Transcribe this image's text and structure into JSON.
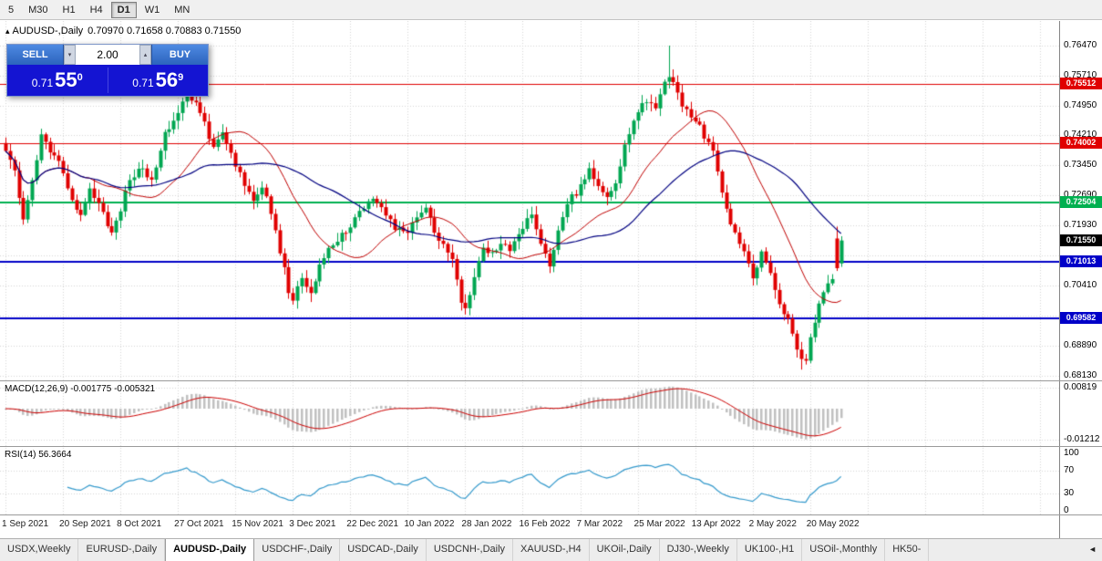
{
  "toolbar": {
    "timeframes": [
      {
        "label": "5",
        "active": false
      },
      {
        "label": "M30",
        "active": false
      },
      {
        "label": "H1",
        "active": false
      },
      {
        "label": "H4",
        "active": false
      },
      {
        "label": "D1",
        "active": true
      },
      {
        "label": "W1",
        "active": false
      },
      {
        "label": "MN",
        "active": false
      }
    ]
  },
  "chart_header": {
    "collapse_icon": "▴",
    "symbol_period": "AUDUSD-,Daily",
    "ohlc": "0.70970 0.71658 0.70883 0.71550"
  },
  "trade_panel": {
    "sell_label": "SELL",
    "buy_label": "BUY",
    "volume": "2.00",
    "spin_down_icon": "▾",
    "spin_up_icon": "▴",
    "sell_price": {
      "prefix": "0.71",
      "big": "55",
      "sup": "0"
    },
    "buy_price": {
      "prefix": "0.71",
      "big": "56",
      "sup": "9"
    }
  },
  "macd": {
    "label": "MACD(12,26,9) -0.001775 -0.005321",
    "fast": 12,
    "slow": 26,
    "signal": 9,
    "value": -0.001775,
    "signal_value": -0.005321,
    "axis_labels": [
      "0.00819",
      "-0.01212"
    ]
  },
  "rsi": {
    "label": "RSI(14) 56.3664",
    "period": 14,
    "value": 56.3664,
    "axis_levels": [
      100,
      70,
      30,
      0
    ],
    "grid_levels": [
      70,
      30
    ]
  },
  "price_axis": {
    "ticks": [
      "0.76470",
      "0.75710",
      "0.74950",
      "0.74210",
      "0.73450",
      "0.72690",
      "0.71930",
      "0.71170",
      "0.70410",
      "0.69650",
      "0.68890",
      "0.68130"
    ],
    "current_price": {
      "label": "0.71550",
      "value": 0.7155,
      "color": "#000000"
    }
  },
  "date_axis": {
    "labels": [
      "1 Sep 2021",
      "20 Sep 2021",
      "8 Oct 2021",
      "27 Oct 2021",
      "15 Nov 2021",
      "3 Dec 2021",
      "22 Dec 2021",
      "10 Jan 2022",
      "28 Jan 2022",
      "16 Feb 2022",
      "7 Mar 2022",
      "25 Mar 2022",
      "13 Apr 2022",
      "2 May 2022",
      "20 May 2022"
    ],
    "candles_per_label": 13
  },
  "levels": [
    {
      "value": 0.75512,
      "label": "0.75512",
      "color": "#e00000",
      "width": 1
    },
    {
      "value": 0.74002,
      "label": "0.74002",
      "color": "#e00000",
      "width": 1
    },
    {
      "value": 0.72504,
      "label": "0.72504",
      "color": "#00b050",
      "width": 2
    },
    {
      "value": 0.71013,
      "label": "0.71013",
      "color": "#0000c8",
      "width": 2
    },
    {
      "value": 0.69582,
      "label": "0.69582",
      "color": "#0000c8",
      "width": 2
    }
  ],
  "chart_data": {
    "type": "candlestick",
    "symbol": "AUDUSD-",
    "period": "Daily",
    "total_candles": 190,
    "ylim": [
      0.679,
      0.7709
    ],
    "close_anchors": [
      [
        0,
        0.739
      ],
      [
        2,
        0.733
      ],
      [
        4,
        0.721
      ],
      [
        6,
        0.731
      ],
      [
        8,
        0.742
      ],
      [
        10,
        0.7385
      ],
      [
        13,
        0.733
      ],
      [
        15,
        0.725
      ],
      [
        17,
        0.7225
      ],
      [
        19,
        0.729
      ],
      [
        21,
        0.725
      ],
      [
        24,
        0.7175
      ],
      [
        26,
        0.7235
      ],
      [
        28,
        0.731
      ],
      [
        31,
        0.734
      ],
      [
        33,
        0.7305
      ],
      [
        36,
        0.743
      ],
      [
        39,
        0.747
      ],
      [
        41,
        0.7535
      ],
      [
        43,
        0.7495
      ],
      [
        45,
        0.745
      ],
      [
        47,
        0.739
      ],
      [
        49,
        0.743
      ],
      [
        52,
        0.734
      ],
      [
        54,
        0.73
      ],
      [
        56,
        0.7255
      ],
      [
        58,
        0.729
      ],
      [
        60,
        0.723
      ],
      [
        62,
        0.713
      ],
      [
        64,
        0.703
      ],
      [
        65,
        0.7005
      ],
      [
        67,
        0.706
      ],
      [
        69,
        0.7015
      ],
      [
        71,
        0.709
      ],
      [
        73,
        0.713
      ],
      [
        75,
        0.716
      ],
      [
        78,
        0.719
      ],
      [
        80,
        0.723
      ],
      [
        83,
        0.7265
      ],
      [
        85,
        0.724
      ],
      [
        88,
        0.719
      ],
      [
        91,
        0.717
      ],
      [
        93,
        0.7215
      ],
      [
        95,
        0.723
      ],
      [
        97,
        0.718
      ],
      [
        99,
        0.714
      ],
      [
        101,
        0.71
      ],
      [
        103,
        0.7005
      ],
      [
        104,
        0.699
      ],
      [
        106,
        0.706
      ],
      [
        108,
        0.714
      ],
      [
        110,
        0.712
      ],
      [
        112,
        0.715
      ],
      [
        114,
        0.7135
      ],
      [
        117,
        0.719
      ],
      [
        119,
        0.722
      ],
      [
        121,
        0.715
      ],
      [
        123,
        0.7095
      ],
      [
        125,
        0.718
      ],
      [
        127,
        0.725
      ],
      [
        130,
        0.729
      ],
      [
        132,
        0.734
      ],
      [
        134,
        0.729
      ],
      [
        136,
        0.7265
      ],
      [
        138,
        0.73
      ],
      [
        140,
        0.739
      ],
      [
        143,
        0.748
      ],
      [
        145,
        0.751
      ],
      [
        147,
        0.749
      ],
      [
        149,
        0.7555
      ],
      [
        150,
        0.7575
      ],
      [
        151,
        0.7555
      ],
      [
        153,
        0.75
      ],
      [
        156,
        0.746
      ],
      [
        158,
        0.742
      ],
      [
        160,
        0.738
      ],
      [
        162,
        0.727
      ],
      [
        164,
        0.72
      ],
      [
        166,
        0.715
      ],
      [
        168,
        0.709
      ],
      [
        169,
        0.706
      ],
      [
        171,
        0.713
      ],
      [
        173,
        0.708
      ],
      [
        175,
        0.699
      ],
      [
        177,
        0.695
      ],
      [
        179,
        0.6875
      ],
      [
        181,
        0.685
      ],
      [
        182,
        0.6905
      ],
      [
        184,
        0.699
      ],
      [
        186,
        0.7045
      ],
      [
        188,
        0.7085
      ],
      [
        189,
        0.7155
      ]
    ],
    "special_points": {
      "spike_index": 150,
      "spike_high": 0.7647,
      "dec_low_index": 65,
      "dec_low": 0.6993,
      "jan_low_index": 104,
      "jan_low": 0.6968,
      "may_low_index": 180,
      "may_low": 0.6829,
      "prev_candle": {
        "o": 0.716,
        "h": 0.719,
        "l": 0.7078,
        "c": 0.7085
      },
      "last_candle": {
        "o": 0.7097,
        "h": 0.71658,
        "l": 0.70883,
        "c": 0.7155
      }
    },
    "moving_averages": [
      {
        "period": 20,
        "color": "#c00000"
      },
      {
        "period": 40,
        "color": "#000080"
      }
    ]
  },
  "tabs": {
    "items": [
      {
        "label": "USDX,Weekly",
        "active": false
      },
      {
        "label": "EURUSD-,Daily",
        "active": false
      },
      {
        "label": "AUDUSD-,Daily",
        "active": true
      },
      {
        "label": "USDCHF-,Daily",
        "active": false
      },
      {
        "label": "USDCAD-,Daily",
        "active": false
      },
      {
        "label": "USDCNH-,Daily",
        "active": false
      },
      {
        "label": "XAUUSD-,H4",
        "active": false
      },
      {
        "label": "UKOil-,Daily",
        "active": false
      },
      {
        "label": "DJ30-,Weekly",
        "active": false
      },
      {
        "label": "UK100-,H1",
        "active": false
      },
      {
        "label": "USOil-,Monthly",
        "active": false
      },
      {
        "label": "HK50-",
        "active": false
      }
    ],
    "scroll_left_icon": "◄"
  },
  "colors": {
    "up_candle": "#00A651",
    "down_candle": "#E00000",
    "grid": "#d6d6d6",
    "macd_hist": "#c0c0c0",
    "macd_signal": "#cc0000",
    "rsi_line": "#3399cc",
    "separator": "#9a9a9a",
    "axis_text": "#000000"
  }
}
